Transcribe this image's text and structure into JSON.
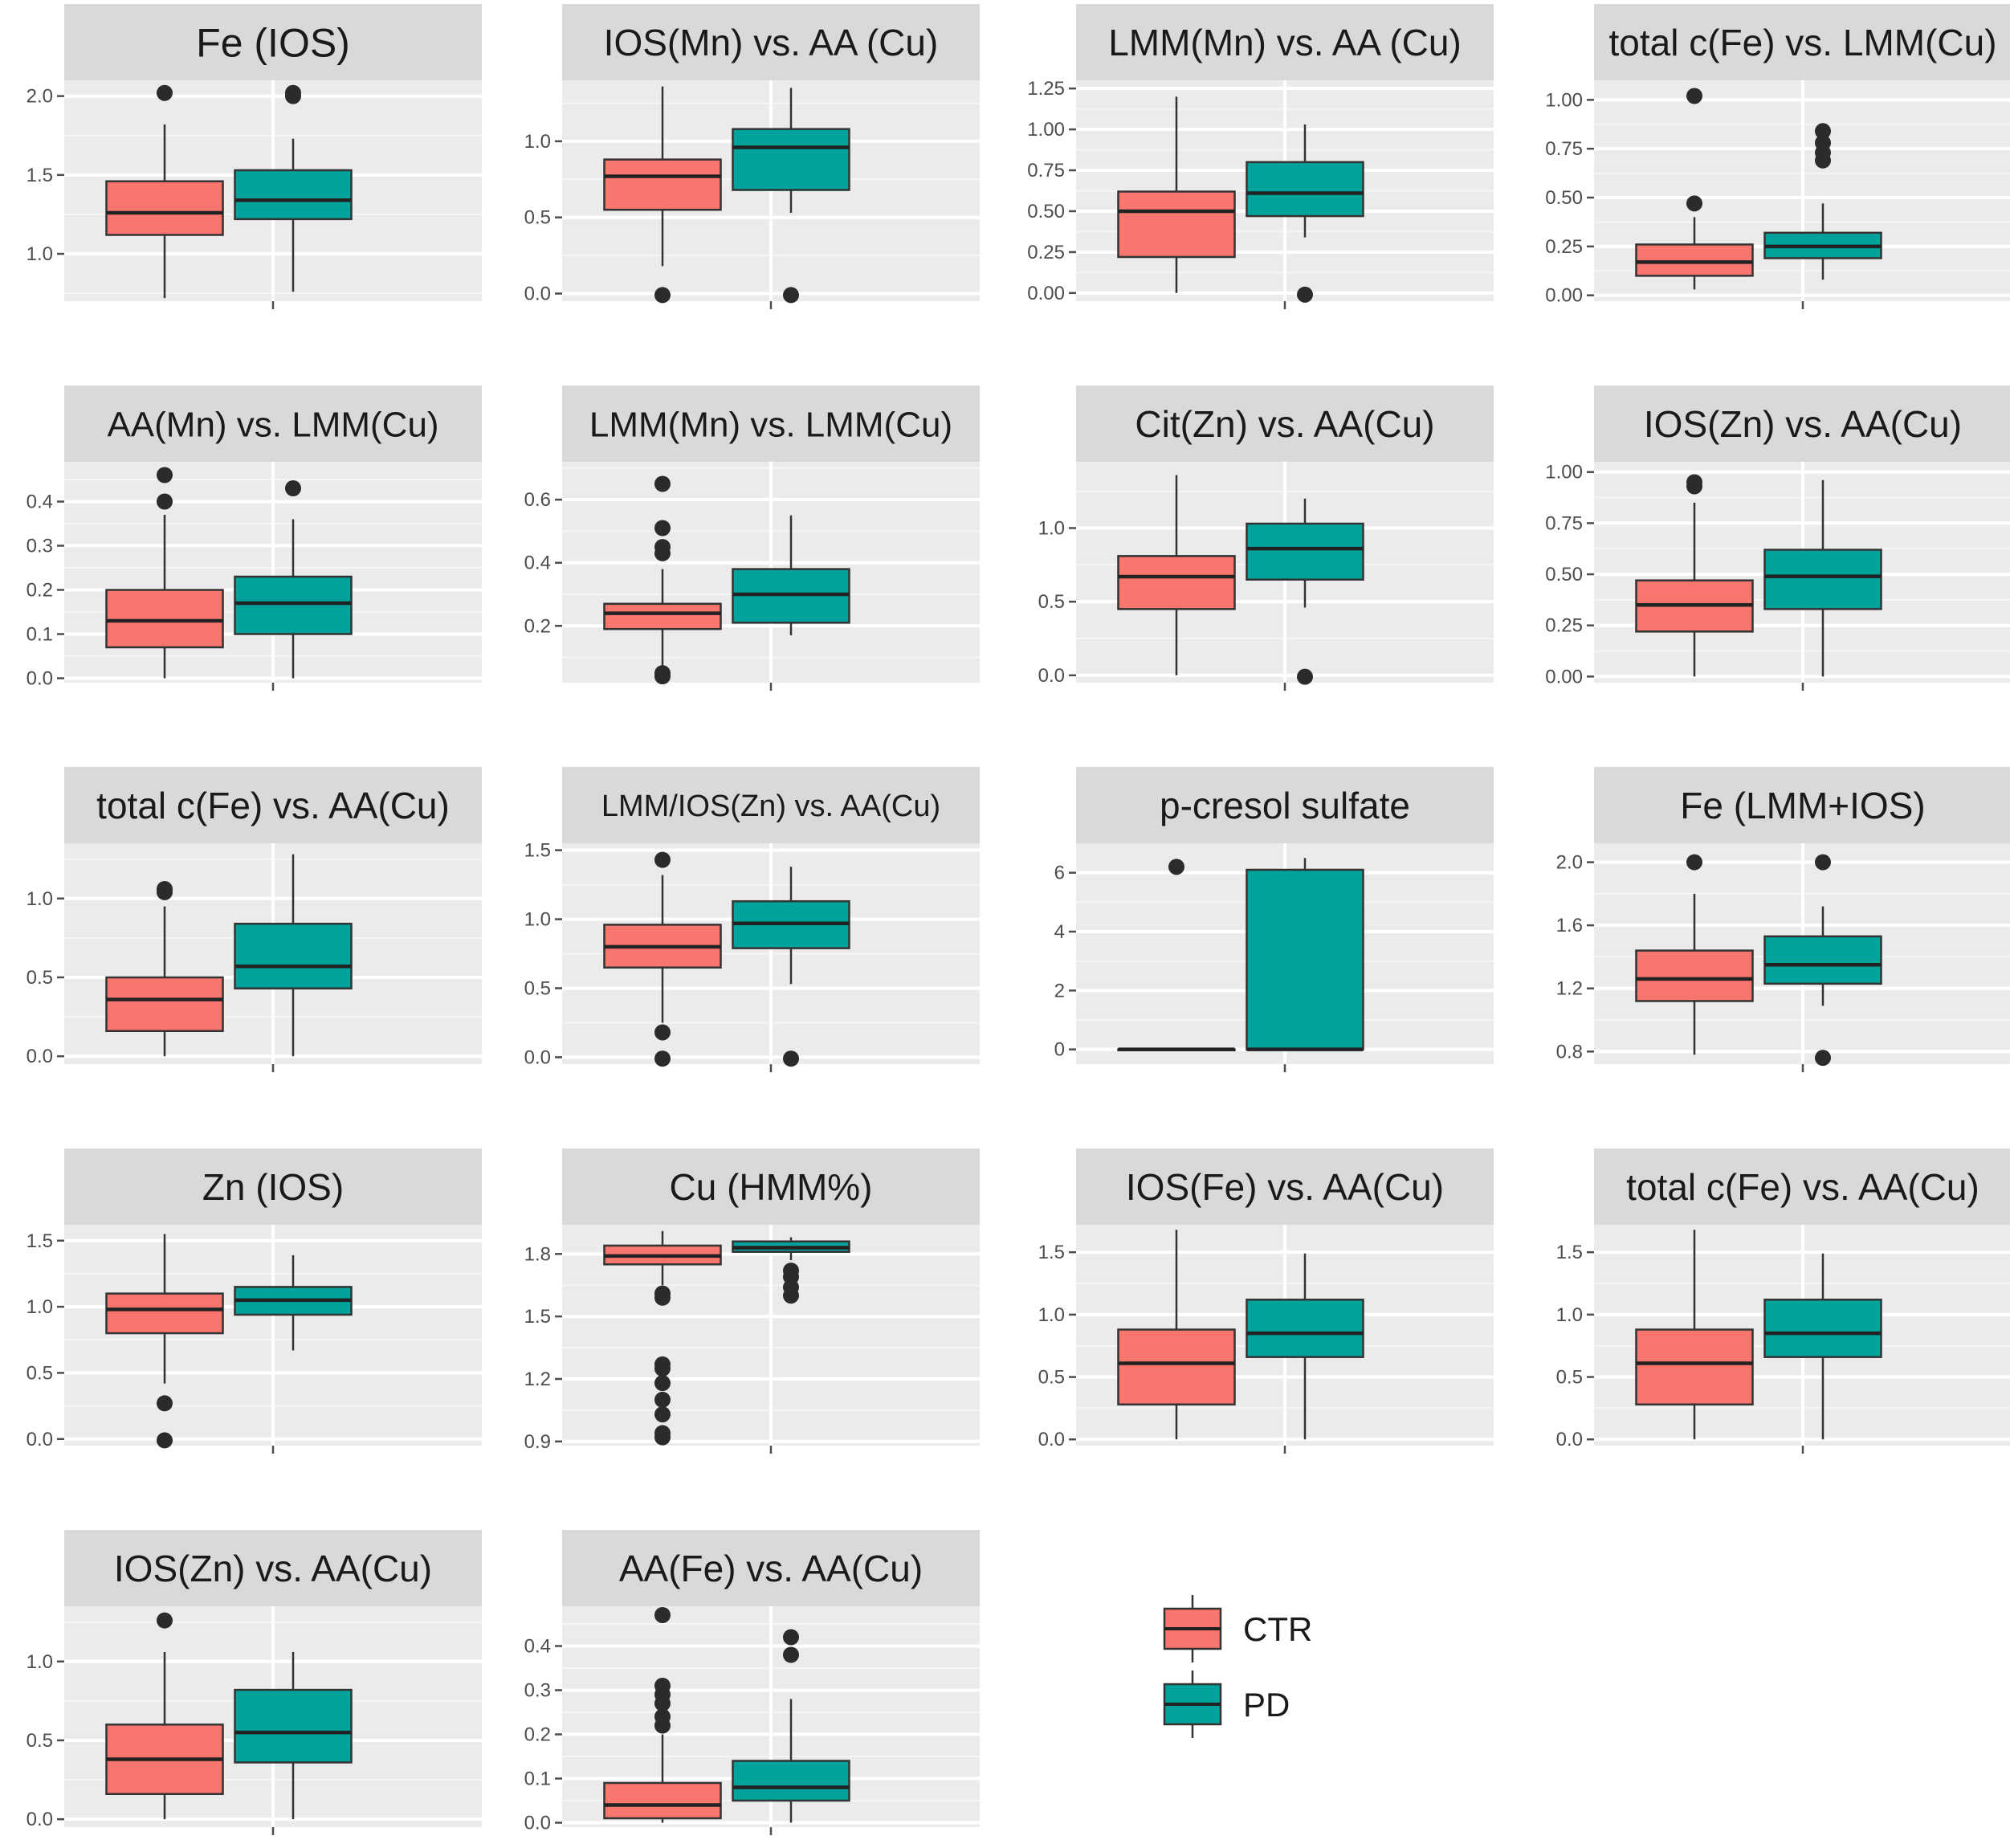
{
  "colors": {
    "CTR": "#F8766D",
    "PD": "#00A39B",
    "panel": "#EBEBEB",
    "strip": "#D9D9D9",
    "grid": "#ffffff",
    "outlier": "#2b2b2b"
  },
  "legend": {
    "items": [
      {
        "label": "CTR",
        "color": "#F8766D"
      },
      {
        "label": "PD",
        "color": "#00A39B"
      }
    ]
  },
  "chart_data": [
    {
      "type": "box",
      "title": "Fe (IOS)",
      "ylim": [
        0.7,
        2.1
      ],
      "ticks": [
        "2.0",
        "1.5",
        "1.0"
      ],
      "tickValues": [
        2.0,
        1.5,
        1.0
      ],
      "series": [
        {
          "name": "CTR",
          "min": 0.72,
          "q1": 1.12,
          "median": 1.26,
          "q3": 1.46,
          "max": 1.82,
          "outliers": [
            2.02
          ]
        },
        {
          "name": "PD",
          "min": 0.76,
          "q1": 1.22,
          "median": 1.34,
          "q3": 1.53,
          "max": 1.73,
          "outliers": [
            2.0,
            2.02
          ]
        }
      ]
    },
    {
      "type": "box",
      "title": "IOS(Mn) vs. AA (Cu)",
      "ylim": [
        -0.05,
        1.4
      ],
      "ticks": [
        "1.0",
        "0.5",
        "0.0"
      ],
      "tickValues": [
        1.0,
        0.5,
        0.0
      ],
      "series": [
        {
          "name": "CTR",
          "min": 0.18,
          "q1": 0.55,
          "median": 0.77,
          "q3": 0.88,
          "max": 1.36,
          "outliers": [
            -0.01
          ]
        },
        {
          "name": "PD",
          "min": 0.53,
          "q1": 0.68,
          "median": 0.96,
          "q3": 1.08,
          "max": 1.35,
          "outliers": [
            -0.01
          ]
        }
      ]
    },
    {
      "type": "box",
      "title": "LMM(Mn) vs. AA (Cu)",
      "ylim": [
        -0.05,
        1.3
      ],
      "ticks": [
        "1.25",
        "1.00",
        "0.75",
        "0.50",
        "0.25",
        "0.00"
      ],
      "tickValues": [
        1.25,
        1.0,
        0.75,
        0.5,
        0.25,
        0.0
      ],
      "series": [
        {
          "name": "CTR",
          "min": 0.0,
          "q1": 0.22,
          "median": 0.5,
          "q3": 0.62,
          "max": 1.2,
          "outliers": []
        },
        {
          "name": "PD",
          "min": 0.34,
          "q1": 0.47,
          "median": 0.61,
          "q3": 0.8,
          "max": 1.03,
          "outliers": [
            -0.01
          ]
        }
      ]
    },
    {
      "type": "box",
      "title": "total c(Fe) vs. LMM(Cu)",
      "ylim": [
        -0.03,
        1.1
      ],
      "ticks": [
        "1.00",
        "0.75",
        "0.50",
        "0.25",
        "0.00"
      ],
      "tickValues": [
        1.0,
        0.75,
        0.5,
        0.25,
        0.0
      ],
      "series": [
        {
          "name": "CTR",
          "min": 0.03,
          "q1": 0.1,
          "median": 0.17,
          "q3": 0.26,
          "max": 0.4,
          "outliers": [
            0.47,
            1.02
          ]
        },
        {
          "name": "PD",
          "min": 0.08,
          "q1": 0.19,
          "median": 0.25,
          "q3": 0.32,
          "max": 0.47,
          "outliers": [
            0.69,
            0.73,
            0.78,
            0.84
          ]
        }
      ]
    },
    {
      "type": "box",
      "title": "AA(Mn) vs. LMM(Cu)",
      "ylim": [
        -0.01,
        0.49
      ],
      "ticks": [
        "0.4",
        "0.3",
        "0.2",
        "0.1",
        "0.0"
      ],
      "tickValues": [
        0.4,
        0.3,
        0.2,
        0.1,
        0.0
      ],
      "series": [
        {
          "name": "CTR",
          "min": 0.0,
          "q1": 0.07,
          "median": 0.13,
          "q3": 0.2,
          "max": 0.37,
          "outliers": [
            0.4,
            0.46
          ]
        },
        {
          "name": "PD",
          "min": 0.0,
          "q1": 0.1,
          "median": 0.17,
          "q3": 0.23,
          "max": 0.36,
          "outliers": [
            0.43
          ]
        }
      ]
    },
    {
      "type": "box",
      "title": "LMM(Mn) vs. LMM(Cu)",
      "ylim": [
        0.02,
        0.72
      ],
      "ticks": [
        "0.6",
        "0.4",
        "0.2"
      ],
      "tickValues": [
        0.6,
        0.4,
        0.2
      ],
      "series": [
        {
          "name": "CTR",
          "min": 0.05,
          "q1": 0.19,
          "median": 0.24,
          "q3": 0.27,
          "max": 0.38,
          "outliers": [
            0.04,
            0.05,
            0.43,
            0.45,
            0.51,
            0.65
          ]
        },
        {
          "name": "PD",
          "min": 0.17,
          "q1": 0.21,
          "median": 0.3,
          "q3": 0.38,
          "max": 0.55,
          "outliers": []
        }
      ]
    },
    {
      "type": "box",
      "title": "Cit(Zn) vs. AA(Cu)",
      "ylim": [
        -0.05,
        1.45
      ],
      "ticks": [
        "1.0",
        "0.5",
        "0.0"
      ],
      "tickValues": [
        1.0,
        0.5,
        0.0
      ],
      "series": [
        {
          "name": "CTR",
          "min": 0.0,
          "q1": 0.45,
          "median": 0.67,
          "q3": 0.81,
          "max": 1.36,
          "outliers": []
        },
        {
          "name": "PD",
          "min": 0.46,
          "q1": 0.65,
          "median": 0.86,
          "q3": 1.03,
          "max": 1.2,
          "outliers": [
            -0.01
          ]
        }
      ]
    },
    {
      "type": "box",
      "title": "IOS(Zn) vs. AA(Cu)",
      "ylim": [
        -0.03,
        1.05
      ],
      "ticks": [
        "1.00",
        "0.75",
        "0.50",
        "0.25",
        "0.00"
      ],
      "tickValues": [
        1.0,
        0.75,
        0.5,
        0.25,
        0.0
      ],
      "series": [
        {
          "name": "CTR",
          "min": 0.0,
          "q1": 0.22,
          "median": 0.35,
          "q3": 0.47,
          "max": 0.85,
          "outliers": [
            0.93,
            0.95
          ]
        },
        {
          "name": "PD",
          "min": 0.0,
          "q1": 0.33,
          "median": 0.49,
          "q3": 0.62,
          "max": 0.96,
          "outliers": []
        }
      ]
    },
    {
      "type": "box",
      "title": "total c(Fe) vs. AA(Cu)",
      "ylim": [
        -0.05,
        1.35
      ],
      "ticks": [
        "1.0",
        "0.5",
        "0.0"
      ],
      "tickValues": [
        1.0,
        0.5,
        0.0
      ],
      "series": [
        {
          "name": "CTR",
          "min": 0.0,
          "q1": 0.16,
          "median": 0.36,
          "q3": 0.5,
          "max": 0.95,
          "outliers": [
            1.04,
            1.06
          ]
        },
        {
          "name": "PD",
          "min": 0.0,
          "q1": 0.43,
          "median": 0.57,
          "q3": 0.84,
          "max": 1.28,
          "outliers": []
        }
      ]
    },
    {
      "type": "box",
      "title": "LMM/IOS(Zn) vs. AA(Cu)",
      "ylim": [
        -0.05,
        1.55
      ],
      "ticks": [
        "1.5",
        "1.0",
        "0.5",
        "0.0"
      ],
      "tickValues": [
        1.5,
        1.0,
        0.5,
        0.0
      ],
      "series": [
        {
          "name": "CTR",
          "min": 0.25,
          "q1": 0.65,
          "median": 0.8,
          "q3": 0.96,
          "max": 1.32,
          "outliers": [
            -0.01,
            0.18,
            1.43
          ]
        },
        {
          "name": "PD",
          "min": 0.53,
          "q1": 0.79,
          "median": 0.97,
          "q3": 1.13,
          "max": 1.38,
          "outliers": [
            -0.01
          ]
        }
      ]
    },
    {
      "type": "box",
      "title": "p-cresol sulfate",
      "ylim": [
        -0.5,
        7.0
      ],
      "ticks": [
        "6",
        "4",
        "2",
        "0"
      ],
      "tickValues": [
        6,
        4,
        2,
        0
      ],
      "series": [
        {
          "name": "CTR",
          "min": 0.0,
          "q1": 0.0,
          "median": 0.0,
          "q3": 0.0,
          "max": 0.0,
          "outliers": [
            6.2
          ]
        },
        {
          "name": "PD",
          "min": 0.0,
          "q1": 0.0,
          "median": 0.0,
          "q3": 6.1,
          "max": 6.5,
          "outliers": []
        }
      ]
    },
    {
      "type": "box",
      "title": "Fe (LMM+IOS)",
      "ylim": [
        0.72,
        2.12
      ],
      "ticks": [
        "2.0",
        "1.6",
        "1.2",
        "0.8"
      ],
      "tickValues": [
        2.0,
        1.6,
        1.2,
        0.8
      ],
      "series": [
        {
          "name": "CTR",
          "min": 0.78,
          "q1": 1.12,
          "median": 1.26,
          "q3": 1.44,
          "max": 1.8,
          "outliers": [
            2.0
          ]
        },
        {
          "name": "PD",
          "min": 1.09,
          "q1": 1.23,
          "median": 1.35,
          "q3": 1.53,
          "max": 1.72,
          "outliers": [
            0.76,
            2.0
          ]
        }
      ]
    },
    {
      "type": "box",
      "title": "Zn (IOS)",
      "ylim": [
        -0.05,
        1.62
      ],
      "ticks": [
        "1.5",
        "1.0",
        "0.5",
        "0.0"
      ],
      "tickValues": [
        1.5,
        1.0,
        0.5,
        0.0
      ],
      "series": [
        {
          "name": "CTR",
          "min": 0.42,
          "q1": 0.8,
          "median": 0.98,
          "q3": 1.1,
          "max": 1.55,
          "outliers": [
            -0.01,
            0.27
          ]
        },
        {
          "name": "PD",
          "min": 0.67,
          "q1": 0.94,
          "median": 1.05,
          "q3": 1.15,
          "max": 1.39,
          "outliers": []
        }
      ]
    },
    {
      "type": "box",
      "title": "Cu (HMM%)",
      "ylim": [
        0.88,
        1.94
      ],
      "ticks": [
        "1.8",
        "1.5",
        "1.2",
        "0.9"
      ],
      "tickValues": [
        1.8,
        1.5,
        1.2,
        0.9
      ],
      "series": [
        {
          "name": "CTR",
          "min": 1.65,
          "q1": 1.75,
          "median": 1.79,
          "q3": 1.84,
          "max": 1.91,
          "outliers": [
            0.92,
            0.94,
            1.03,
            1.1,
            1.18,
            1.25,
            1.27,
            1.59,
            1.61
          ]
        },
        {
          "name": "PD",
          "min": 1.77,
          "q1": 1.81,
          "median": 1.83,
          "q3": 1.86,
          "max": 1.88,
          "outliers": [
            1.6,
            1.64,
            1.69,
            1.72
          ]
        }
      ]
    },
    {
      "type": "box",
      "title": "IOS(Fe) vs. AA(Cu)",
      "ylim": [
        -0.05,
        1.72
      ],
      "ticks": [
        "1.5",
        "1.0",
        "0.5",
        "0.0"
      ],
      "tickValues": [
        1.5,
        1.0,
        0.5,
        0.0
      ],
      "series": [
        {
          "name": "CTR",
          "min": 0.0,
          "q1": 0.28,
          "median": 0.61,
          "q3": 0.88,
          "max": 1.68,
          "outliers": []
        },
        {
          "name": "PD",
          "min": 0.0,
          "q1": 0.66,
          "median": 0.85,
          "q3": 1.12,
          "max": 1.49,
          "outliers": []
        }
      ]
    },
    {
      "type": "box",
      "title": "total c(Fe) vs. AA(Cu)",
      "ylim": [
        -0.05,
        1.72
      ],
      "ticks": [
        "1.5",
        "1.0",
        "0.5",
        "0.0"
      ],
      "tickValues": [
        1.5,
        1.0,
        0.5,
        0.0
      ],
      "series": [
        {
          "name": "CTR",
          "min": 0.0,
          "q1": 0.28,
          "median": 0.61,
          "q3": 0.88,
          "max": 1.68,
          "outliers": []
        },
        {
          "name": "PD",
          "min": 0.0,
          "q1": 0.66,
          "median": 0.85,
          "q3": 1.12,
          "max": 1.49,
          "outliers": []
        }
      ]
    },
    {
      "type": "box",
      "title": "IOS(Zn) vs. AA(Cu)",
      "ylim": [
        -0.05,
        1.35
      ],
      "ticks": [
        "1.0",
        "0.5",
        "0.0"
      ],
      "tickValues": [
        1.0,
        0.5,
        0.0
      ],
      "series": [
        {
          "name": "CTR",
          "min": 0.0,
          "q1": 0.16,
          "median": 0.38,
          "q3": 0.6,
          "max": 1.06,
          "outliers": [
            1.26
          ]
        },
        {
          "name": "PD",
          "min": 0.0,
          "q1": 0.36,
          "median": 0.55,
          "q3": 0.82,
          "max": 1.06,
          "outliers": []
        }
      ]
    },
    {
      "type": "box",
      "title": "AA(Fe) vs. AA(Cu)",
      "ylim": [
        -0.01,
        0.49
      ],
      "ticks": [
        "0.4",
        "0.3",
        "0.2",
        "0.1",
        "0.0"
      ],
      "tickValues": [
        0.4,
        0.3,
        0.2,
        0.1,
        0.0
      ],
      "series": [
        {
          "name": "CTR",
          "min": 0.0,
          "q1": 0.01,
          "median": 0.04,
          "q3": 0.09,
          "max": 0.2,
          "outliers": [
            0.22,
            0.24,
            0.27,
            0.29,
            0.31,
            0.47
          ]
        },
        {
          "name": "PD",
          "min": 0.0,
          "q1": 0.05,
          "median": 0.08,
          "q3": 0.14,
          "max": 0.28,
          "outliers": [
            0.38,
            0.42
          ]
        }
      ]
    }
  ]
}
